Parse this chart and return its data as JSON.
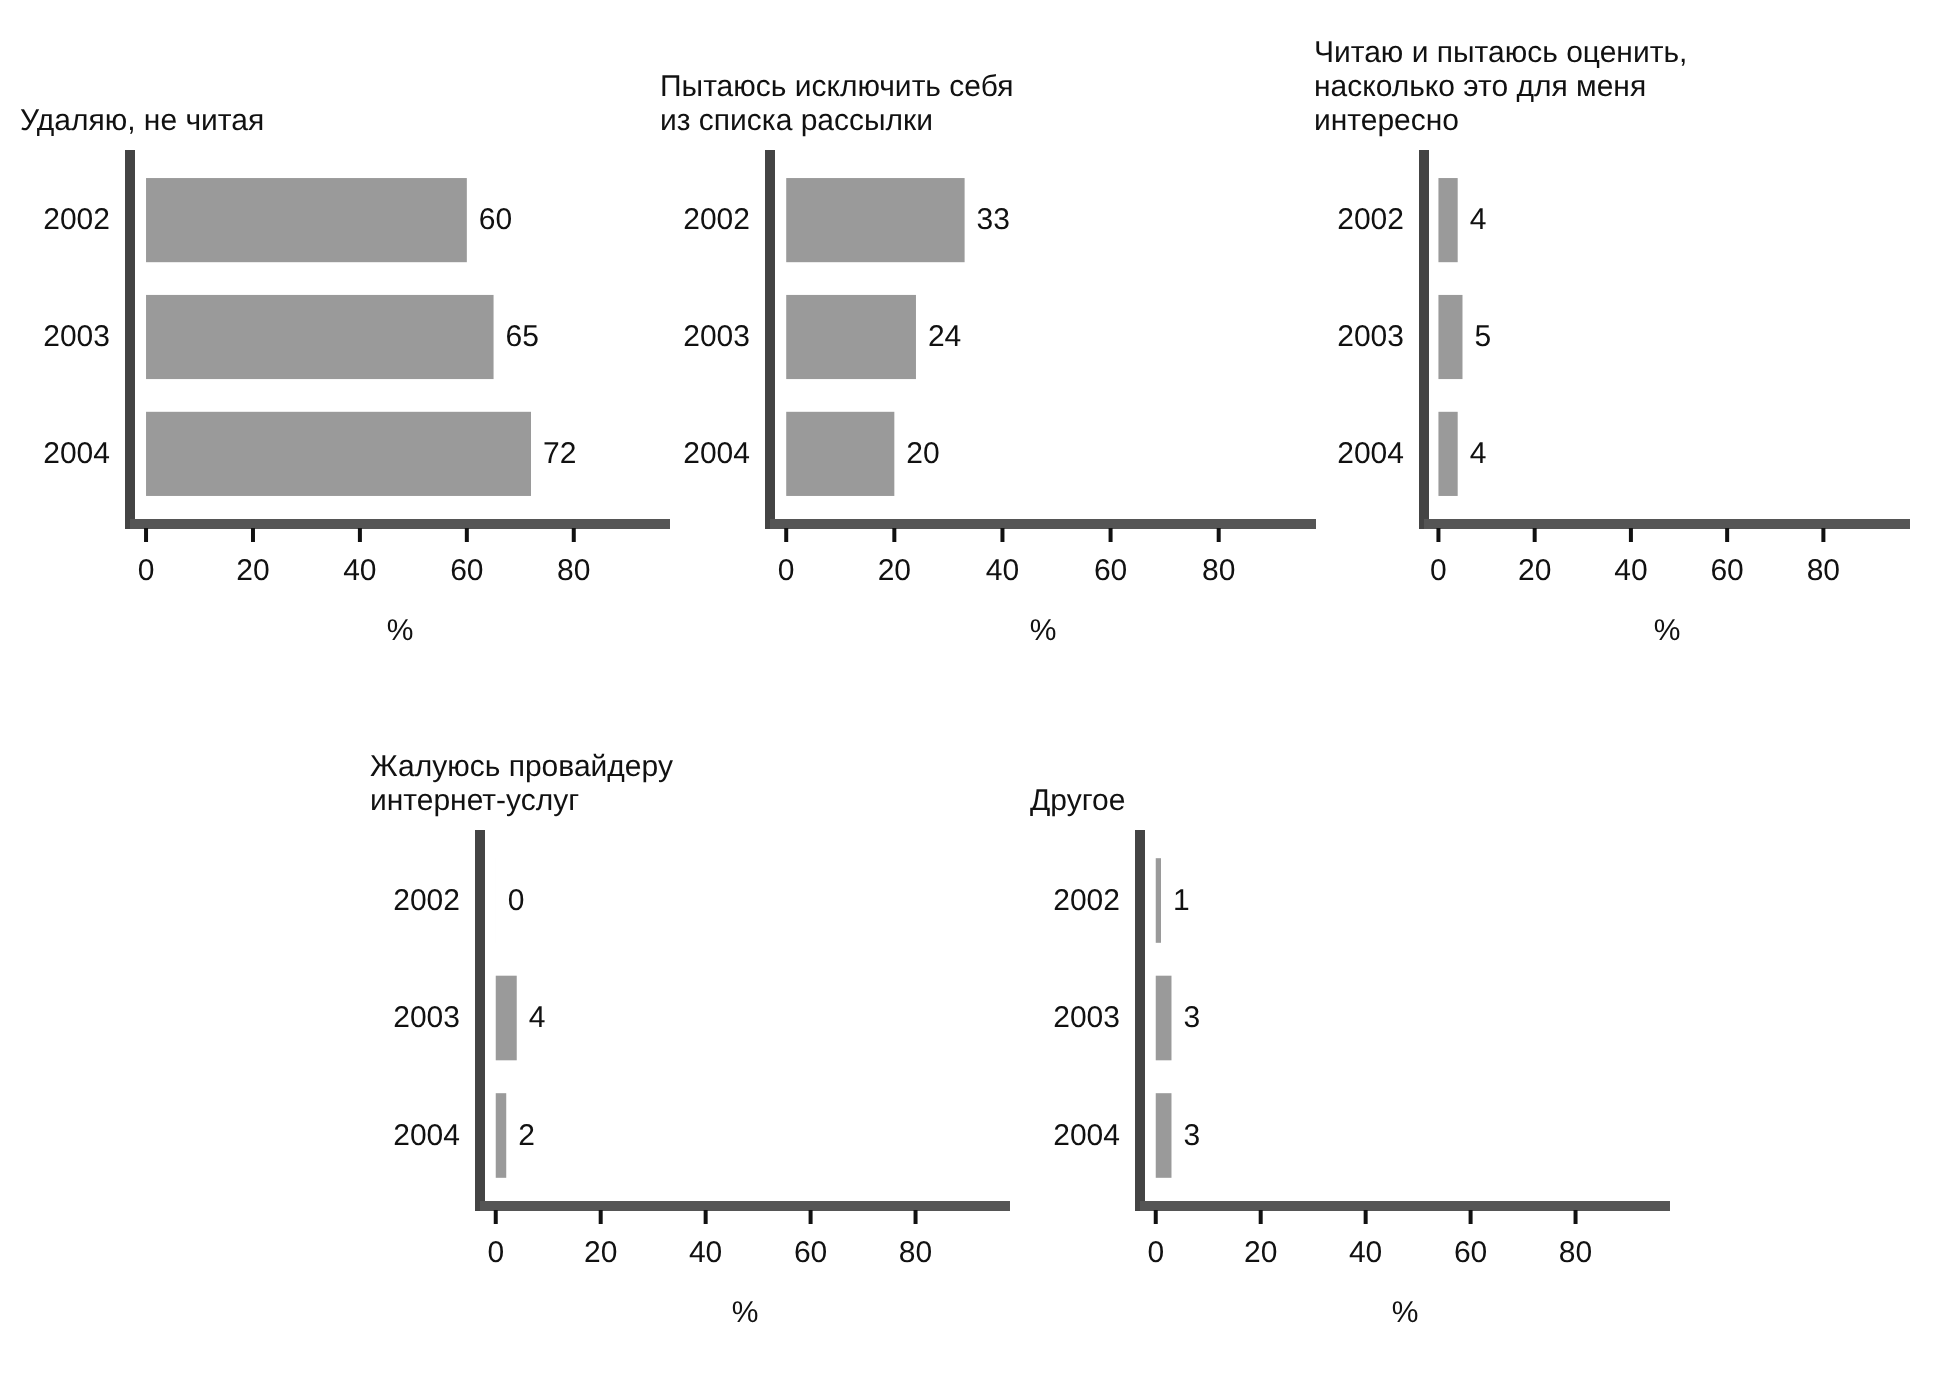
{
  "chart_data": [
    {
      "type": "bar",
      "orientation": "horizontal",
      "title": "Удаляю, не читая",
      "categories": [
        "2002",
        "2003",
        "2004"
      ],
      "values": [
        60,
        65,
        72
      ],
      "color": "#9a9a9a",
      "data_labels": true,
      "xlim": [
        -3,
        98
      ],
      "xticks": [
        0,
        20,
        40,
        60,
        80
      ],
      "xlabel": "%",
      "grid": false
    },
    {
      "type": "bar",
      "orientation": "horizontal",
      "title": "Пытаюсь исключить себя\nиз списка рассылки",
      "categories": [
        "2002",
        "2003",
        "2004"
      ],
      "values": [
        33,
        24,
        20
      ],
      "color": "#9a9a9a",
      "data_labels": true,
      "xlim": [
        -3,
        98
      ],
      "xticks": [
        0,
        20,
        40,
        60,
        80
      ],
      "xlabel": "%",
      "grid": false
    },
    {
      "type": "bar",
      "orientation": "horizontal",
      "title": "Читаю и пытаюсь оценить,\nнасколько это для меня\nинтересно",
      "categories": [
        "2002",
        "2003",
        "2004"
      ],
      "values": [
        4,
        5,
        4
      ],
      "color": "#9a9a9a",
      "data_labels": true,
      "xlim": [
        -3,
        98
      ],
      "xticks": [
        0,
        20,
        40,
        60,
        80
      ],
      "xlabel": "%",
      "grid": false
    },
    {
      "type": "bar",
      "orientation": "horizontal",
      "title": "Жалуюсь провайдеру\nинтернет-услуг",
      "categories": [
        "2002",
        "2003",
        "2004"
      ],
      "values": [
        0,
        4,
        2
      ],
      "color": "#9a9a9a",
      "data_labels": true,
      "xlim": [
        -3,
        98
      ],
      "xticks": [
        0,
        20,
        40,
        60,
        80
      ],
      "xlabel": "%",
      "grid": false
    },
    {
      "type": "bar",
      "orientation": "horizontal",
      "title": "Другое",
      "categories": [
        "2002",
        "2003",
        "2004"
      ],
      "values": [
        1,
        3,
        3
      ],
      "color": "#9a9a9a",
      "data_labels": true,
      "xlim": [
        -3,
        98
      ],
      "xticks": [
        0,
        20,
        40,
        60,
        80
      ],
      "xlabel": "%",
      "grid": false
    }
  ]
}
